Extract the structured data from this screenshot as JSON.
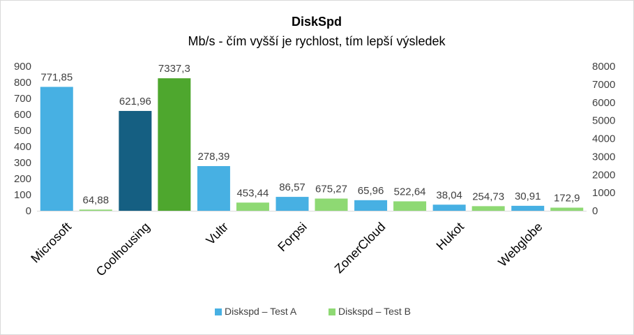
{
  "chart_data": {
    "type": "bar",
    "title": "DiskSpd",
    "subtitle": "Mb/s - čím vyšší je rychlost, tím lepší výsledek",
    "categories": [
      "Microsoft",
      "Coolhousing",
      "Vultr",
      "Forpsi",
      "ZonerCloud",
      "Hukot",
      "Webglobe"
    ],
    "series": [
      {
        "name": "Diskspd – Test A",
        "axis": "left",
        "color": "#47b0e3",
        "values": [
          771.85,
          621.96,
          278.39,
          86.57,
          65.96,
          38.04,
          30.91
        ],
        "labels": [
          "771,85",
          "621,96",
          "278,39",
          "86,57",
          "65,96",
          "38,04",
          "30,91"
        ],
        "bar_colors": [
          "#47b0e3",
          "#155f82",
          "#47b0e3",
          "#47b0e3",
          "#47b0e3",
          "#47b0e3",
          "#47b0e3"
        ]
      },
      {
        "name": "Diskspd – Test B",
        "axis": "right",
        "color": "#8ed973",
        "values": [
          64.88,
          7337.3,
          453.44,
          675.27,
          522.64,
          254.73,
          172.9
        ],
        "labels": [
          "64,88",
          "7337,3",
          "453,44",
          "675,27",
          "522,64",
          "254,73",
          "172,9"
        ],
        "bar_colors": [
          "#8ed973",
          "#4ea72e",
          "#8ed973",
          "#8ed973",
          "#8ed973",
          "#8ed973",
          "#8ed973"
        ]
      }
    ],
    "y_left": {
      "min": 0,
      "max": 900,
      "step": 100,
      "ticks": [
        "0",
        "100",
        "200",
        "300",
        "400",
        "500",
        "600",
        "700",
        "800",
        "900"
      ]
    },
    "y_right": {
      "min": 0,
      "max": 8000,
      "step": 1000,
      "ticks": [
        "0",
        "1000",
        "2000",
        "3000",
        "4000",
        "5000",
        "6000",
        "7000",
        "8000"
      ]
    },
    "grid": false,
    "legend_position": "bottom"
  }
}
